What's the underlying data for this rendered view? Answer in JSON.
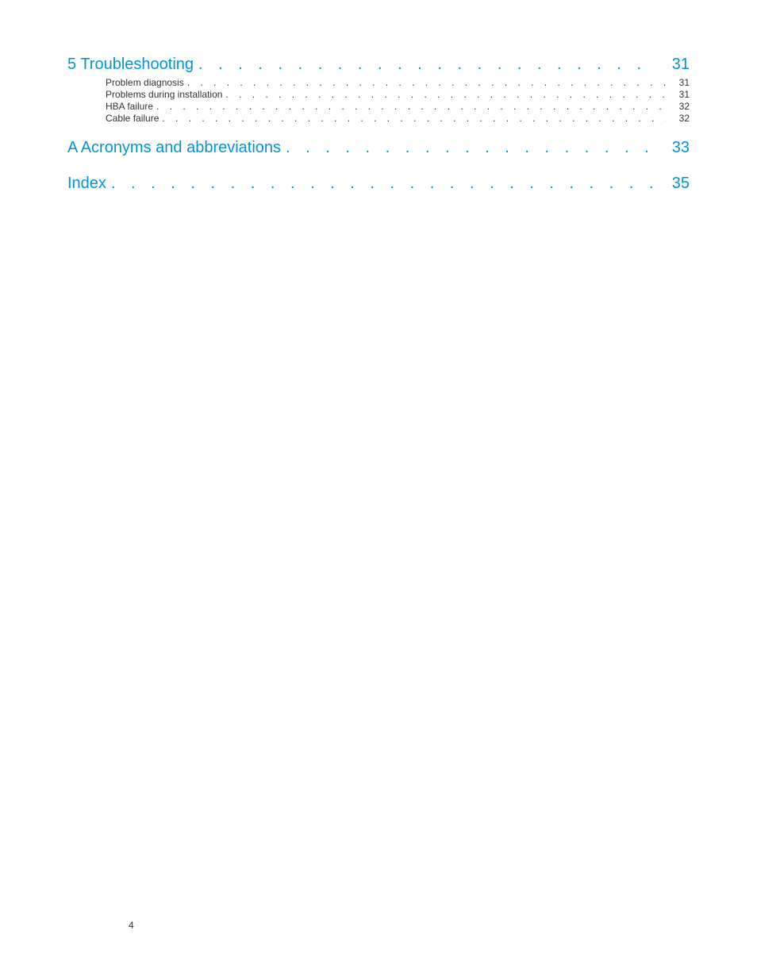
{
  "toc": {
    "sections": [
      {
        "label": "5 Troubleshooting",
        "page": "31",
        "subs": [
          {
            "label": "Problem diagnosis",
            "page": "31"
          },
          {
            "label": "Problems during installation",
            "page": "31"
          },
          {
            "label": "HBA failure",
            "page": "32"
          },
          {
            "label": "Cable failure",
            "page": "32"
          }
        ]
      },
      {
        "label": "A Acronyms and abbreviations",
        "page": "33",
        "subs": []
      },
      {
        "label": "Index",
        "page": "35",
        "subs": []
      }
    ]
  },
  "page_number": "4",
  "colors": {
    "link": "#0096d6",
    "text": "#333333",
    "background": "#ffffff"
  },
  "leaders": {
    "section": ". . . . . . . . . . . . . . . . . . . . . . . . . . . . . . . . . . . . . . . . . . . . . . . . . . . . . . . . . . . . . . . . . . . . . . . . . . . . . . . . . . . . . . . . . . . . . . . . . .",
    "sub": ". . . . . . . . . . . . . . . . . . . . . . . . . . . . . . . . . . . . . . . . . . . . . . . . . . . . . . . . . . . . . . . . . . . . . . . . . . . . . . . . . . . . . . . . . . . . . . . . . . . . . . . . . . . . . . . . . . . . . . . . . . . . . . . . . . . . ."
  }
}
